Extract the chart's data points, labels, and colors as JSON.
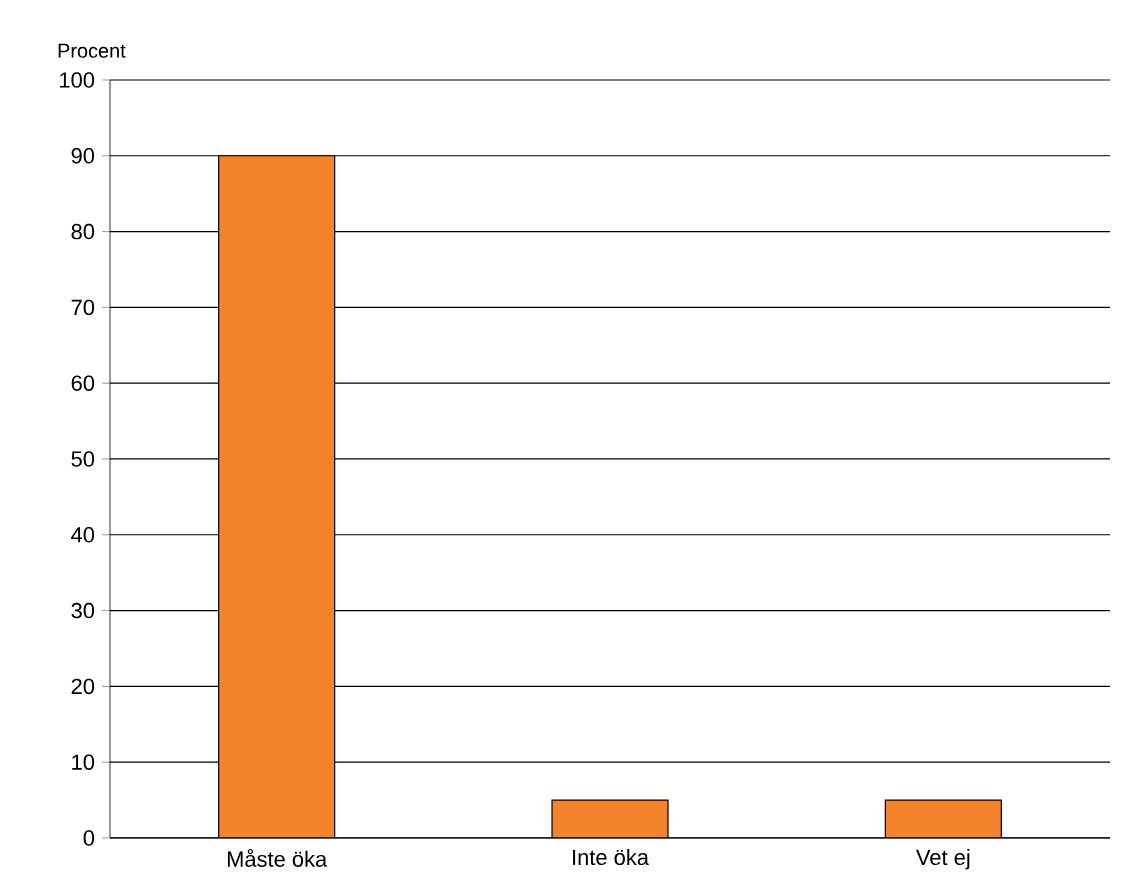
{
  "chart_data": {
    "type": "bar",
    "ylabel": "Procent",
    "categories": [
      "Måste öka",
      "Inte öka",
      "Vet ej"
    ],
    "values": [
      90,
      5,
      5
    ],
    "color": "#f5822d",
    "ylim": [
      0,
      100
    ],
    "yticks": [
      0,
      10,
      20,
      30,
      40,
      50,
      60,
      70,
      80,
      90,
      100
    ],
    "grid": "y"
  }
}
